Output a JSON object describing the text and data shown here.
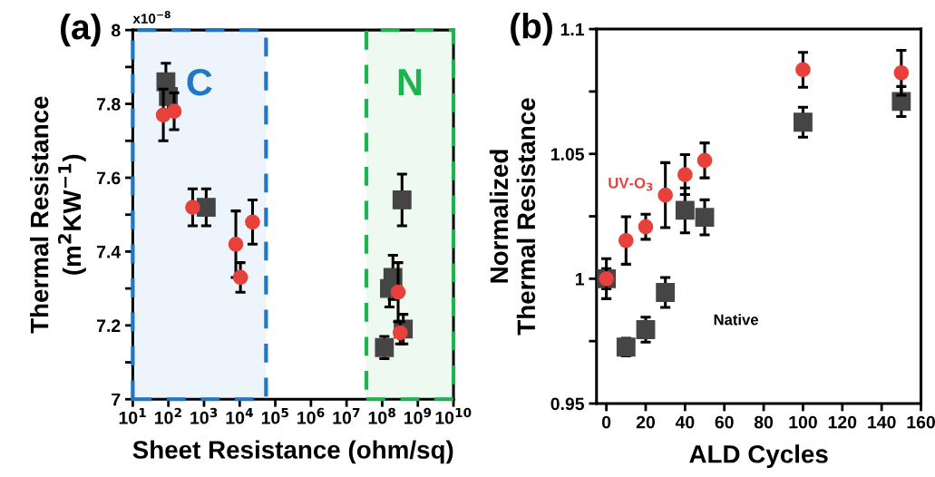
{
  "chart_data": [
    {
      "type": "scatter",
      "title": "(a)",
      "xlabel": "Sheet Resistance (ohm/sq)",
      "ylabel": "Thermal Resistance\n(m$^{2}$KW$^{−1}$)",
      "annotations": [
        "x10$^{−8}$"
      ],
      "log": "x",
      "grid": false,
      "legend": false,
      "xlim": [
        10,
        10000000000
      ],
      "xticks": [
        {
          "value": 10,
          "label": "10$^{1}$"
        },
        {
          "value": 100,
          "label": "10$^{2}$"
        },
        {
          "value": 1000,
          "label": "10$^{3}$"
        },
        {
          "value": 10000,
          "label": "10$^{4}$"
        },
        {
          "value": 100000,
          "label": "10$^{5}$"
        },
        {
          "value": 1000000,
          "label": "10$^{6}$"
        },
        {
          "value": 10000000,
          "label": "10$^{7}$"
        },
        {
          "value": 100000000,
          "label": "10$^{8}$"
        },
        {
          "value": 1000000000,
          "label": "10$^{9}$"
        },
        {
          "value": 10000000000,
          "label": "10$^{10}$"
        }
      ],
      "ylim": [
        7,
        8
      ],
      "yticks": [
        7,
        {
          "value": 7.1,
          "label": null
        },
        7.2,
        {
          "value": 7.3,
          "label": null
        },
        7.4,
        {
          "value": 7.5,
          "label": null
        },
        7.6,
        {
          "value": 7.7,
          "label": null
        },
        7.8,
        {
          "value": 7.9,
          "label": null
        },
        8
      ],
      "bands": [
        {
          "axis": "x",
          "from": 10,
          "to": 55000,
          "label": "C",
          "color": "#1f77c8"
        },
        {
          "axis": "x",
          "from": 36000000,
          "to": 10000000000,
          "label": "N",
          "color": "#1db34f"
        }
      ],
      "series": [
        {
          "color": "#e8413c",
          "marker": "circle",
          "x": [
            72,
            145,
            480,
            7800,
            10500,
            23000,
            280000000,
            320000000
          ],
          "values": [
            7.77,
            7.78,
            7.52,
            7.42,
            7.33,
            7.48,
            7.29,
            7.18
          ],
          "errors": [
            0.07,
            0.05,
            0.05,
            0.09,
            0.04,
            0.06,
            0.08,
            0.03
          ]
        },
        {
          "color": "#454545",
          "marker": "square",
          "x": [
            85,
            100,
            1150,
            360000000,
            200000000,
            160000000,
            390000000,
            115000000
          ],
          "values": [
            7.86,
            7.82,
            7.52,
            7.54,
            7.33,
            7.3,
            7.19,
            7.14
          ],
          "errors": [
            0.05,
            0.04,
            0.05,
            0.07,
            0.06,
            0.05,
            0.04,
            0.03
          ]
        }
      ]
    },
    {
      "type": "scatter",
      "title": "(b)",
      "xlabel": "ALD Cycles",
      "ylabel": "Normalized\nThermal Resistance",
      "grid": false,
      "legend": false,
      "xlim": [
        -5,
        160
      ],
      "xticks": [
        0,
        20,
        40,
        60,
        80,
        100,
        120,
        140,
        160
      ],
      "ylim": [
        0.95,
        1.1
      ],
      "yticks": [
        0.95,
        {
          "value": 0.975,
          "label": null
        },
        1,
        {
          "value": 1.025,
          "label": null
        },
        1.05,
        {
          "value": 1.075,
          "label": null
        },
        1.1
      ],
      "series": [
        {
          "name": "UV-O$_{3}$",
          "color": "#e8413c",
          "marker": "circle",
          "x": [
            0,
            10,
            20,
            30,
            40,
            50,
            100,
            150
          ],
          "values": [
            1.0,
            1.0153,
            1.0208,
            1.0335,
            1.0417,
            1.0474,
            1.0837,
            1.0825
          ],
          "errors": [
            0.008,
            0.0095,
            0.005,
            0.013,
            0.008,
            0.007,
            0.007,
            0.009
          ]
        },
        {
          "name": "Native",
          "color": "#454545",
          "marker": "square",
          "x": [
            0,
            10,
            20,
            30,
            40,
            50,
            100,
            150
          ],
          "values": [
            1.0,
            0.9726,
            0.9796,
            0.9945,
            1.0274,
            1.0246,
            1.0627,
            1.071
          ],
          "errors": [
            0.004,
            0.0035,
            0.005,
            0.006,
            0.009,
            0.007,
            0.006,
            0.006
          ]
        }
      ]
    }
  ]
}
